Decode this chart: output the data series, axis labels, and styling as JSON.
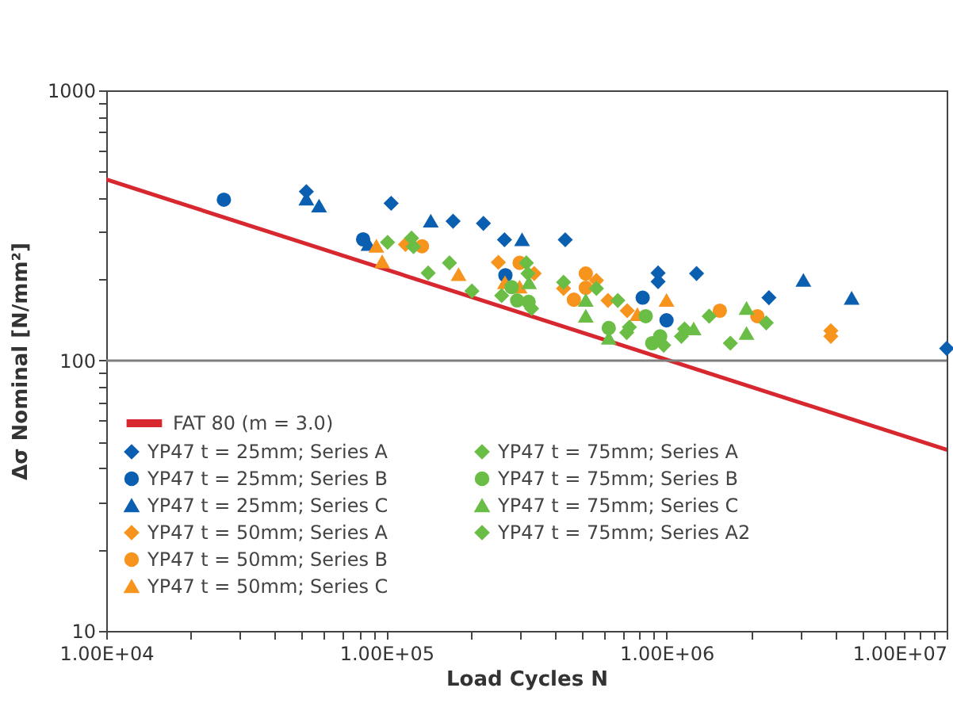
{
  "chart_data": {
    "type": "scatter",
    "xlabel": "Load Cycles N",
    "ylabel": "Δσ Nominal [N/mm²]",
    "log": "xy",
    "legend": "bottom left",
    "xlim": [
      10000,
      10000000
    ],
    "ylim": [
      10,
      1000
    ],
    "xticks": [
      {
        "value": 10000,
        "label": "1.00E+04"
      },
      {
        "value": 20000,
        "label": null
      },
      {
        "value": 30000,
        "label": null
      },
      {
        "value": 40000,
        "label": null
      },
      {
        "value": 50000,
        "label": null
      },
      {
        "value": 60000,
        "label": null
      },
      {
        "value": 70000,
        "label": null
      },
      {
        "value": 80000,
        "label": null
      },
      {
        "value": 90000,
        "label": null
      },
      {
        "value": 100000,
        "label": "1.00E+05"
      },
      {
        "value": 200000,
        "label": null
      },
      {
        "value": 300000,
        "label": null
      },
      {
        "value": 400000,
        "label": null
      },
      {
        "value": 500000,
        "label": null
      },
      {
        "value": 600000,
        "label": null
      },
      {
        "value": 700000,
        "label": null
      },
      {
        "value": 800000,
        "label": null
      },
      {
        "value": 900000,
        "label": null
      },
      {
        "value": 1000000,
        "label": "1.00E+06"
      },
      {
        "value": 2000000,
        "label": null
      },
      {
        "value": 3000000,
        "label": null
      },
      {
        "value": 4000000,
        "label": null
      },
      {
        "value": 5000000,
        "label": null
      },
      {
        "value": 6000000,
        "label": null
      },
      {
        "value": 7000000,
        "label": null
      },
      {
        "value": 8000000,
        "label": null
      },
      {
        "value": 9000000,
        "label": null
      },
      {
        "value": 10000000,
        "label": "1.00E+07"
      }
    ],
    "yticks": [
      10,
      {
        "value": 20,
        "label": null
      },
      {
        "value": 30,
        "label": null
      },
      {
        "value": 40,
        "label": null
      },
      {
        "value": 50,
        "label": null
      },
      {
        "value": 60,
        "label": null
      },
      {
        "value": 70,
        "label": null
      },
      {
        "value": 80,
        "label": null
      },
      {
        "value": 90,
        "label": null
      },
      100,
      {
        "value": 200,
        "label": null
      },
      {
        "value": 300,
        "label": null
      },
      {
        "value": 400,
        "label": null
      },
      {
        "value": 500,
        "label": null
      },
      {
        "value": 600,
        "label": null
      },
      {
        "value": 700,
        "label": null
      },
      {
        "value": 800,
        "label": null
      },
      {
        "value": 900,
        "label": null
      },
      1000
    ],
    "ref_lines": [
      {
        "axis": "y",
        "value": 100,
        "color": "#7f7f7f"
      }
    ],
    "series": [
      {
        "name": "FAT 80 (m = 3.0)",
        "type": "line",
        "color": "#d7282f",
        "x": [
          10000,
          10000000
        ],
        "values": [
          468,
          46.8
        ]
      },
      {
        "name": "YP47 t = 25mm; Series A",
        "color": "#0b5fb0",
        "marker": "diamond",
        "x": [
          51800,
          104000,
          173000,
          222000,
          264000,
          435000,
          933000,
          933000,
          1280000,
          2320000,
          10000000
        ],
        "values": [
          422,
          382,
          328,
          322,
          280,
          280,
          211,
          196,
          210,
          171,
          111
        ]
      },
      {
        "name": "YP47 t = 25mm; Series B",
        "color": "#0b5fb0",
        "marker": "circle",
        "x": [
          26300,
          82600,
          266000,
          822000,
          1000000
        ],
        "values": [
          394,
          281,
          207,
          171,
          141
        ]
      },
      {
        "name": "YP47 t = 25mm; Series C",
        "color": "#0b5fb0",
        "marker": "triangle",
        "x": [
          51800,
          57500,
          86300,
          144000,
          305000,
          3080000,
          4580000
        ],
        "values": [
          396,
          373,
          269,
          328,
          280,
          198,
          170
        ]
      },
      {
        "name": "YP47 t = 50mm; Series A",
        "color": "#f7941d",
        "marker": "diamond",
        "x": [
          117000,
          251000,
          337000,
          429000,
          562000,
          618000,
          724000,
          3860000,
          3860000
        ],
        "values": [
          269,
          231,
          210,
          185,
          198,
          167,
          153,
          129,
          123
        ]
      },
      {
        "name": "YP47 t = 50mm; Series B",
        "color": "#f7941d",
        "marker": "circle",
        "x": [
          134000,
          299000,
          515000,
          515000,
          467000,
          1550000,
          2110000
        ],
        "values": [
          265,
          230,
          210,
          186,
          168,
          153,
          146
        ]
      },
      {
        "name": "YP47 t = 50mm; Series C",
        "color": "#f7941d",
        "marker": "triangle",
        "x": [
          92100,
          96600,
          181000,
          265000,
          299000,
          787000,
          1000000
        ],
        "values": [
          265,
          232,
          208,
          194,
          187,
          148,
          167
        ]
      },
      {
        "name": "YP47 t = 75mm; Series A",
        "color": "#6abd45",
        "marker": "diamond",
        "x": [
          141000,
          202000,
          330000,
          737000,
          977000,
          1130000
        ],
        "values": [
          211,
          181,
          156,
          133,
          114,
          123
        ]
      },
      {
        "name": "YP47 t = 75mm; Series B",
        "color": "#6abd45",
        "marker": "circle",
        "x": [
          280000,
          293000,
          322000,
          622000,
          843000,
          889000,
          949000
        ],
        "values": [
          187,
          167,
          165,
          132,
          146,
          116,
          123
        ]
      },
      {
        "name": "YP47 t = 75mm; Series C",
        "color": "#6abd45",
        "marker": "triangle",
        "x": [
          323000,
          515000,
          515000,
          622000,
          1250000,
          1930000,
          1930000
        ],
        "values": [
          194,
          167,
          146,
          121,
          131,
          156,
          126
        ]
      },
      {
        "name": "YP47 t = 75mm; Series A2",
        "color": "#6abd45",
        "marker": "diamond",
        "x": [
          101000,
          123000,
          125000,
          168000,
          258000,
          316000,
          320000,
          429000,
          562000,
          670000,
          721000,
          1160000,
          1420000,
          1690000,
          2270000
        ],
        "values": [
          274,
          284,
          264,
          230,
          174,
          230,
          210,
          195,
          185,
          167,
          127,
          131,
          146,
          116,
          138
        ]
      }
    ]
  }
}
